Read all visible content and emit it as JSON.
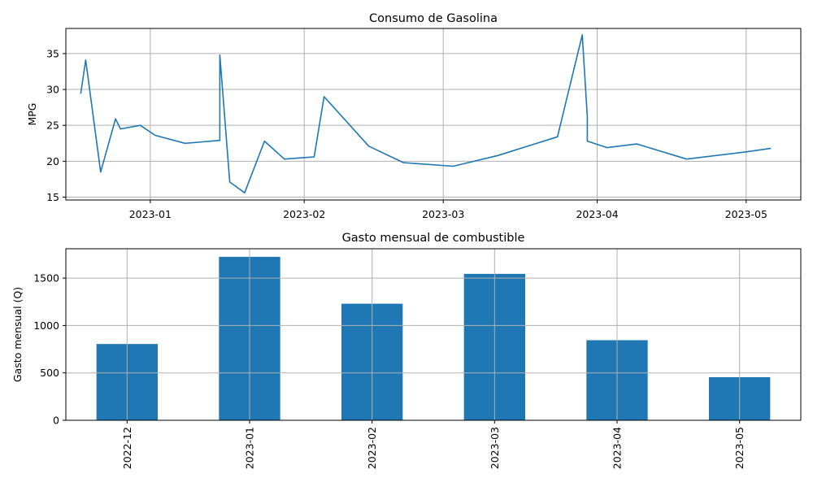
{
  "chart_data": [
    {
      "type": "line",
      "title": "Consumo de Gasolina",
      "xlabel": "",
      "ylabel": "MPG",
      "xlim": [
        "2022-12-15",
        "2023-05-12"
      ],
      "ylim": [
        14.6,
        38.5
      ],
      "yticks": [
        15,
        20,
        25,
        30,
        35
      ],
      "xticks": [
        "2023-01-01",
        "2023-02-01",
        "2023-03-01",
        "2023-04-01",
        "2023-05-01"
      ],
      "xtick_labels": [
        "2023-01",
        "2023-02",
        "2023-03",
        "2023-04",
        "2023-05"
      ],
      "grid": true,
      "color": "#1f77b4",
      "series": [
        {
          "x": [
            "2022-12-18",
            "2022-12-19",
            "2022-12-22",
            "2022-12-25",
            "2022-12-26",
            "2022-12-30",
            "2023-01-02",
            "2023-01-08",
            "2023-01-15",
            "2023-01-15",
            "2023-01-17",
            "2023-01-20",
            "2023-01-24",
            "2023-01-28",
            "2023-02-03",
            "2023-02-05",
            "2023-02-14",
            "2023-02-21",
            "2023-03-03",
            "2023-03-12",
            "2023-03-24",
            "2023-03-29",
            "2023-03-30",
            "2023-03-30",
            "2023-04-03",
            "2023-04-09",
            "2023-04-19",
            "2023-05-01",
            "2023-05-06"
          ],
          "values": [
            29.4,
            34.1,
            18.5,
            25.9,
            24.5,
            25.0,
            23.6,
            22.5,
            22.9,
            34.8,
            17.1,
            15.6,
            22.8,
            20.3,
            20.6,
            29.0,
            22.1,
            19.8,
            19.3,
            20.8,
            23.4,
            37.6,
            26.2,
            22.8,
            21.9,
            22.4,
            20.3,
            21.3,
            21.8
          ]
        }
      ]
    },
    {
      "type": "bar",
      "title": "Gasto mensual de combustible",
      "xlabel": "",
      "ylabel": "Gasto mensual (Q)",
      "categories": [
        "2022-12",
        "2023-01",
        "2023-02",
        "2023-03",
        "2023-04",
        "2023-05"
      ],
      "values": [
        805,
        1725,
        1230,
        1545,
        845,
        455
      ],
      "ylim": [
        0,
        1810
      ],
      "yticks": [
        0,
        500,
        1000,
        1500
      ],
      "grid": true,
      "color": "#1f77b4"
    }
  ]
}
